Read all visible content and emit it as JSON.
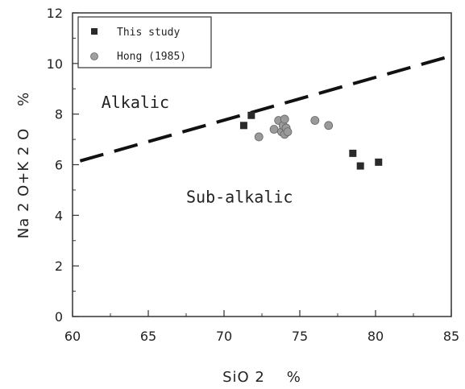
{
  "chart_data": {
    "type": "scatter",
    "xlabel": "SiO 2    %",
    "ylabel": "Na 2 O+K 2 O    %",
    "xlim": [
      60,
      85
    ],
    "ylim": [
      0,
      12
    ],
    "x_ticks": [
      60,
      65,
      70,
      75,
      80,
      85
    ],
    "y_ticks": [
      0,
      2,
      4,
      6,
      8,
      10,
      12
    ],
    "grid": false,
    "legend_position": "top-left",
    "series": [
      {
        "name": "This study",
        "marker": "square",
        "color": "#2a2a2a",
        "points": [
          {
            "x": 71.3,
            "y": 7.55
          },
          {
            "x": 71.8,
            "y": 7.95
          },
          {
            "x": 78.5,
            "y": 6.45
          },
          {
            "x": 79.0,
            "y": 5.95
          },
          {
            "x": 80.2,
            "y": 6.1
          }
        ]
      },
      {
        "name": "Hong (1985)",
        "marker": "circle",
        "color": "#9a9a9a",
        "points": [
          {
            "x": 72.3,
            "y": 7.1
          },
          {
            "x": 73.3,
            "y": 7.4
          },
          {
            "x": 73.6,
            "y": 7.75
          },
          {
            "x": 73.8,
            "y": 7.3
          },
          {
            "x": 73.9,
            "y": 7.55
          },
          {
            "x": 74.0,
            "y": 7.8
          },
          {
            "x": 74.0,
            "y": 7.2
          },
          {
            "x": 74.1,
            "y": 7.45
          },
          {
            "x": 74.2,
            "y": 7.3
          },
          {
            "x": 76.0,
            "y": 7.75
          },
          {
            "x": 76.9,
            "y": 7.55
          }
        ]
      }
    ],
    "divider_line": {
      "style": "dashed",
      "points": [
        {
          "x": 60.5,
          "y": 6.15
        },
        {
          "x": 85,
          "y": 10.3
        }
      ]
    },
    "annotations": [
      {
        "text": "Alkalic",
        "x": 61.9,
        "y": 8.25
      },
      {
        "text": "Sub-alkalic",
        "x": 67.5,
        "y": 4.5
      }
    ]
  }
}
